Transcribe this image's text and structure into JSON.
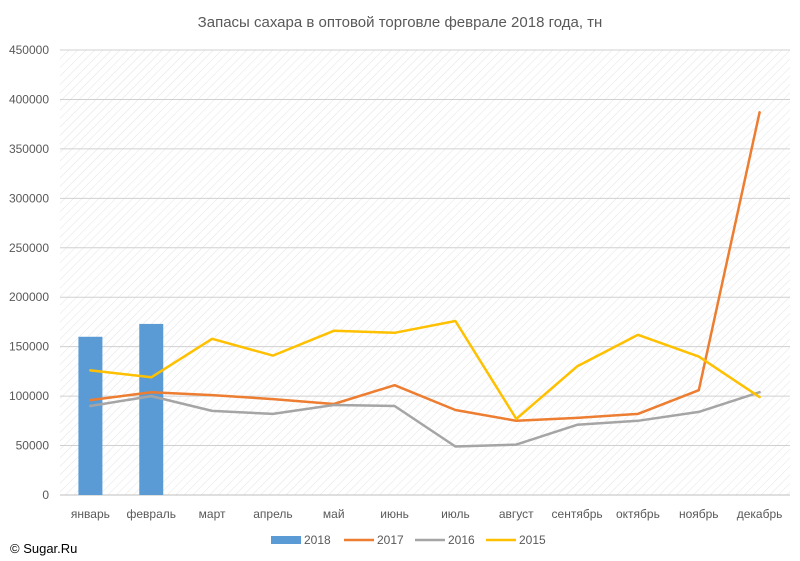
{
  "chart_data": {
    "type": "bar+line",
    "title": "Запасы сахара в оптовой торговле феврале 2018 года, тн",
    "categories": [
      "январь",
      "февраль",
      "март",
      "апрель",
      "май",
      "июнь",
      "июль",
      "август",
      "сентябрь",
      "октябрь",
      "ноябрь",
      "декабрь"
    ],
    "ylim": [
      0,
      450000
    ],
    "yticks": [
      0,
      50000,
      100000,
      150000,
      200000,
      250000,
      300000,
      350000,
      400000,
      450000
    ],
    "ytick_labels": [
      "0",
      "50000",
      "100000",
      "150000",
      "200000",
      "250000",
      "300000",
      "350000",
      "400000",
      "450000"
    ],
    "grid": true,
    "legend_position": "bottom",
    "bar_series": {
      "name": "2018",
      "color": "#5b9bd5",
      "values": [
        160000,
        173000
      ]
    },
    "series": [
      {
        "name": "2017",
        "color": "#ed7d31",
        "values": [
          96000,
          104000,
          101000,
          97000,
          92000,
          111000,
          86000,
          75000,
          78000,
          82000,
          106000,
          387000
        ]
      },
      {
        "name": "2016",
        "color": "#a5a5a5",
        "values": [
          90000,
          100000,
          85000,
          82000,
          91000,
          90000,
          49000,
          51000,
          71000,
          75000,
          84000,
          104000
        ]
      },
      {
        "name": "2015",
        "color": "#ffc000",
        "values": [
          126000,
          119000,
          158000,
          141000,
          166000,
          164000,
          176000,
          77000,
          130000,
          162000,
          140000,
          99000
        ]
      }
    ]
  },
  "credit": "© Sugar.Ru"
}
